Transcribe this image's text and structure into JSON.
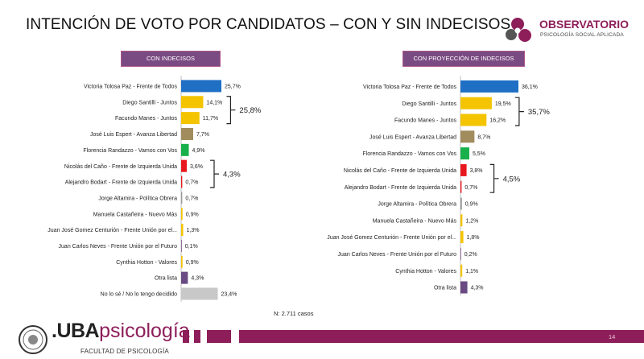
{
  "title": "INTENCIÓN DE VOTO POR CANDIDATOS – CON Y SIN INDECISOS",
  "logo": {
    "name": "OBSERVATORIO",
    "sub": "PSICOLOGÍA SOCIAL APLICADA"
  },
  "note": "N: 2.711 casos",
  "footer": {
    "uba_bold": ".UBA",
    "uba_light": "psicología",
    "faculty": "FACULTAD DE PSICOLOGÍA",
    "page_number": "14"
  },
  "chart_data": [
    {
      "type": "bar",
      "orientation": "horizontal",
      "title": "CON INDECISOS",
      "categories": [
        "Victoria Tolosa Paz - Frente de Todos",
        "Diego Santilli - Juntos",
        "Facundo Manes - Juntos",
        "José Luis Espert - Avanza Libertad",
        "Florencia Randazzo - Vamos con Vos",
        "Nicolás del Caño - Frente de Izquierda Unida",
        "Alejandro Bodart - Frente de Izquierda Unida",
        "Jorge Altamira - Política Obrera",
        "Manuela Castañeira - Nuevo Más",
        "Juan José Gomez Centurión - Frente Unión por el...",
        "Juan Carlos Neves - Frente Unión por el Futuro",
        "Cynthia Hotton - Valores",
        "Otra lista",
        "No lo sé / No lo tengo decidido"
      ],
      "values": [
        25.7,
        14.1,
        11.7,
        7.7,
        4.9,
        3.6,
        0.7,
        0.7,
        0.9,
        1.3,
        0.1,
        0.9,
        4.3,
        23.4
      ],
      "labels": [
        "25,7%",
        "14,1%",
        "11,7%",
        "7,7%",
        "4,9%",
        "3,6%",
        "0,7%",
        "0,7%",
        "0,9%",
        "1,3%",
        "0,1%",
        "0,9%",
        "4,3%",
        "23,4%"
      ],
      "colors": [
        "#1f6fc5",
        "#f4c400",
        "#f4c400",
        "#a08c5c",
        "#18b04a",
        "#e8171e",
        "#e8171e",
        "#9a9a9a",
        "#f4c400",
        "#f4c400",
        "#7a4a82",
        "#f4c400",
        "#6a4a82",
        "#c8c8c8"
      ],
      "annotations": [
        {
          "from": 1,
          "to": 2,
          "label": "25,8%"
        },
        {
          "from": 5,
          "to": 6,
          "label": "4,3%"
        }
      ]
    },
    {
      "type": "bar",
      "orientation": "horizontal",
      "title": "CON PROYECCIÓN DE INDECISOS",
      "categories": [
        "Victoria Tolosa Paz - Frente de Todos",
        "Diego Santilli - Juntos",
        "Facundo Manes - Juntos",
        "José Luis Espert - Avanza Libertad",
        "Florencia Randazzo - Vamos con Vos",
        "Nicolás del Caño - Frente de Izquierda Unida",
        "Alejandro Bodart - Frente de Izquierda Unida",
        "Jorge Altamira - Política Obrera",
        "Manuela Castañeira - Nuevo Más",
        "Juan José Gomez Centurión - Frente Unión por el...",
        "Juan Carlos Neves - Frente Unión por el Futuro",
        "Cynthia Hotton - Valores",
        "Otra lista"
      ],
      "values": [
        36.1,
        19.5,
        16.2,
        8.7,
        5.5,
        3.8,
        0.7,
        0.9,
        1.2,
        1.8,
        0.2,
        1.1,
        4.3
      ],
      "labels": [
        "36,1%",
        "19,5%",
        "16,2%",
        "8,7%",
        "5,5%",
        "3,8%",
        "0,7%",
        "0,9%",
        "1,2%",
        "1,8%",
        "0,2%",
        "1,1%",
        "4,3%"
      ],
      "colors": [
        "#1f6fc5",
        "#f4c400",
        "#f4c400",
        "#a08c5c",
        "#18b04a",
        "#e8171e",
        "#e8171e",
        "#9a9a9a",
        "#f4c400",
        "#f4c400",
        "#7a4a82",
        "#f4c400",
        "#6a4a82"
      ],
      "annotations": [
        {
          "from": 1,
          "to": 2,
          "label": "35,7%"
        },
        {
          "from": 5,
          "to": 6,
          "label": "4,5%"
        }
      ]
    }
  ]
}
